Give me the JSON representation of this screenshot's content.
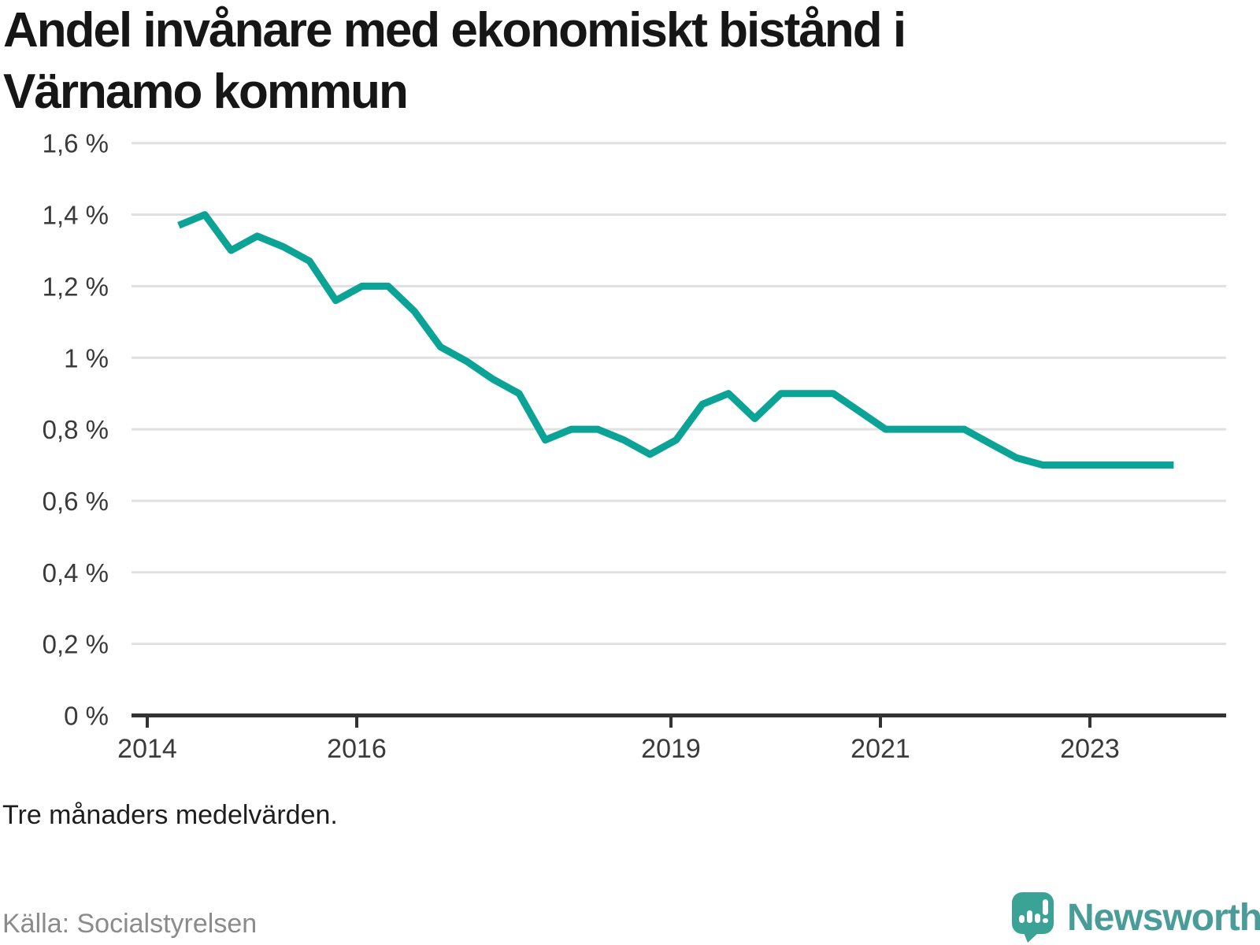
{
  "title": {
    "line1": "Andel invånare med ekonomiskt bistånd i",
    "line2": "Värnamo kommun"
  },
  "footnote": "Tre månaders medelvärden.",
  "source": "Källa: Socialstyrelsen",
  "logo": {
    "text": "Newsworthy",
    "icon": "speech-bubble-bar-chart"
  },
  "colors": {
    "line": "#0aa396",
    "grid": "#e0e0e0",
    "axis": "#333333",
    "axis_label": "#3a3a3a",
    "title": "#161616",
    "footnote": "#1e1e1e",
    "source": "#8b8b8b",
    "logo_bubble": "#3aa396",
    "logo_text": "#4a9c98"
  },
  "chart_data": {
    "type": "line",
    "title": "Andel invånare med ekonomiskt bistånd i Värnamo kommun",
    "subtitle": "Tre månaders medelvärden.",
    "unit": "%",
    "grid": "horizontal",
    "legend": "none",
    "ylim": [
      0,
      1.6
    ],
    "xlim": [
      2013.85,
      2024.3
    ],
    "y_ticks": [
      {
        "value": 1.6,
        "label": "1,6 %"
      },
      {
        "value": 1.4,
        "label": "1,4 %"
      },
      {
        "value": 1.2,
        "label": "1,2 %"
      },
      {
        "value": 1.0,
        "label": "1 %"
      },
      {
        "value": 0.8,
        "label": "0,8 %"
      },
      {
        "value": 0.6,
        "label": "0,6 %"
      },
      {
        "value": 0.4,
        "label": "0,4 %"
      },
      {
        "value": 0.2,
        "label": "0,2 %"
      },
      {
        "value": 0.0,
        "label": "0 %"
      }
    ],
    "x_ticks": [
      {
        "value": 2014,
        "label": "2014"
      },
      {
        "value": 2016,
        "label": "2016"
      },
      {
        "value": 2019,
        "label": "2019"
      },
      {
        "value": 2021,
        "label": "2021"
      },
      {
        "value": 2023,
        "label": "2023"
      }
    ],
    "series_name": "Andel invånare med ekonomiskt bistånd",
    "x": [
      2014.3,
      2014.55,
      2014.8,
      2015.05,
      2015.3,
      2015.55,
      2015.8,
      2016.05,
      2016.3,
      2016.55,
      2016.8,
      2017.05,
      2017.3,
      2017.55,
      2017.8,
      2018.05,
      2018.3,
      2018.55,
      2018.8,
      2019.05,
      2019.3,
      2019.55,
      2019.8,
      2020.05,
      2020.3,
      2020.55,
      2020.8,
      2021.05,
      2021.3,
      2021.55,
      2021.8,
      2022.05,
      2022.3,
      2022.55,
      2022.8,
      2023.05,
      2023.3,
      2023.55,
      2023.8
    ],
    "values": [
      1.37,
      1.4,
      1.3,
      1.34,
      1.31,
      1.27,
      1.16,
      1.2,
      1.2,
      1.13,
      1.03,
      0.99,
      0.94,
      0.9,
      0.77,
      0.8,
      0.8,
      0.77,
      0.73,
      0.77,
      0.87,
      0.9,
      0.83,
      0.9,
      0.9,
      0.9,
      0.85,
      0.8,
      0.8,
      0.8,
      0.8,
      0.76,
      0.72,
      0.7,
      0.7,
      0.7,
      0.7,
      0.7,
      0.7
    ]
  }
}
